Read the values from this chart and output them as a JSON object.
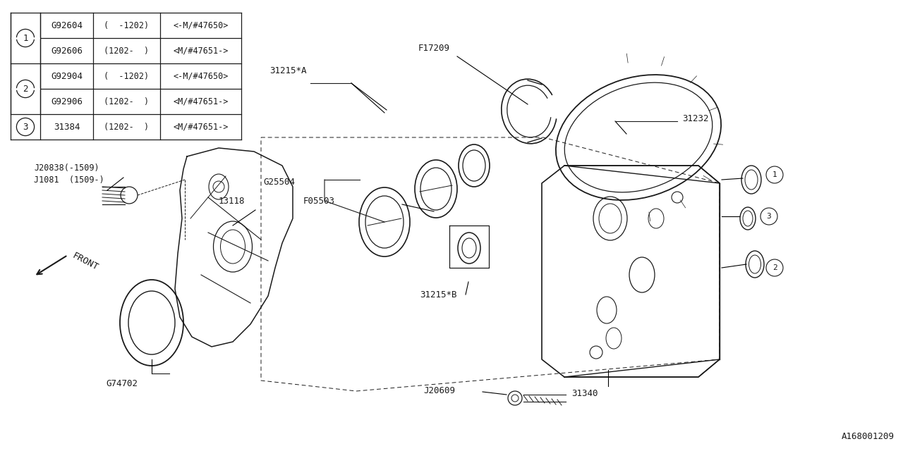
{
  "bg_color": "#ffffff",
  "line_color": "#1a1a1a",
  "diagram_id": "A168001209",
  "table": {
    "rows": [
      {
        "circle": "1",
        "part": "G92604",
        "date1": "(  -1202)",
        "date2": "<-M/#47650>"
      },
      {
        "circle": "",
        "part": "G92606",
        "date1": "(1202-  )",
        "date2": "<M/#47651->"
      },
      {
        "circle": "2",
        "part": "G92904",
        "date1": "(  -1202)",
        "date2": "<-M/#47650>"
      },
      {
        "circle": "",
        "part": "G92906",
        "date1": "(1202-  )",
        "date2": "<M/#47651->"
      },
      {
        "circle": "3",
        "part": "31384",
        "date1": "(1202-  )",
        "date2": "<M/#47651->"
      }
    ]
  }
}
